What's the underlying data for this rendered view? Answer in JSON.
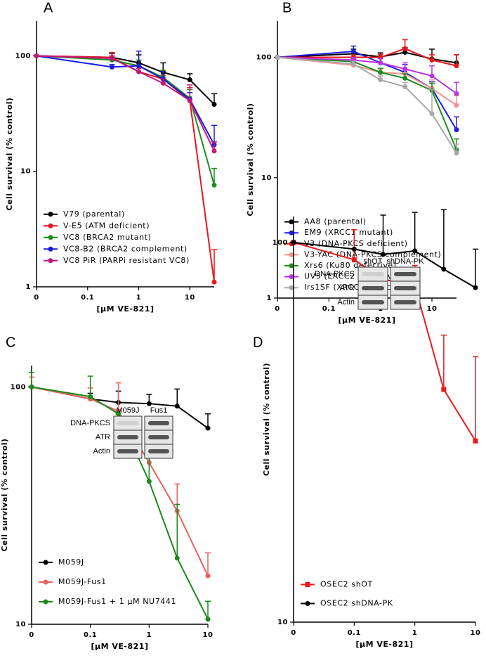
{
  "chart_data": [
    {
      "type": "line",
      "panel": "A",
      "ylabel": "Cell survival (% control)",
      "xlabel": "[µM VE-821]",
      "x": [
        0,
        0.3,
        1,
        3,
        10,
        30
      ],
      "xlim": [
        0,
        30
      ],
      "xticks": [
        0,
        0.1,
        1,
        10
      ],
      "xscale": "log",
      "ylim": [
        1,
        200
      ],
      "yticks": [
        1,
        10,
        100
      ],
      "yscale": "log",
      "legend": "lower left",
      "series": [
        {
          "name": "V79 (parental)",
          "color": "#000000",
          "marker": "circle",
          "values": [
            100,
            97,
            87,
            72,
            62,
            38
          ],
          "errors": [
            0,
            8,
            15,
            15,
            8,
            9
          ]
        },
        {
          "name": "V-E5 (ATM deficient)",
          "color": "#e8161b",
          "marker": "circle",
          "values": [
            100,
            97,
            73,
            63,
            41,
            1.1
          ],
          "errors": [
            0,
            10,
            8,
            5,
            12,
            1
          ]
        },
        {
          "name": "VC8 (BRCA2 mutant)",
          "color": "#1e8c1e",
          "marker": "circle",
          "values": [
            100,
            92,
            82,
            65,
            43,
            7.6
          ],
          "errors": [
            0,
            5,
            10,
            10,
            8,
            3
          ]
        },
        {
          "name": "VC8-B2 (BRCA2 complement)",
          "color": "#1a1adc",
          "marker": "circle",
          "values": [
            100,
            80,
            82,
            63,
            42,
            17
          ],
          "errors": [
            0,
            4,
            28,
            10,
            6,
            8
          ]
        },
        {
          "name": "VC8 PiR (PARPi resistant VC8)",
          "color": "#c2187a",
          "marker": "circle",
          "values": [
            100,
            95,
            73,
            58,
            41,
            15
          ],
          "errors": [
            0,
            5,
            5,
            5,
            15,
            3
          ]
        }
      ]
    },
    {
      "type": "line",
      "panel": "B",
      "ylabel": "Cell survival (% control)",
      "xlabel": "[µM VE-821]",
      "x": [
        0,
        0.3,
        1,
        3,
        10,
        30
      ],
      "xlim": [
        0,
        30
      ],
      "xticks": [
        0,
        0.1,
        1,
        10
      ],
      "xscale": "log",
      "ylim": [
        1,
        200
      ],
      "yticks": [
        1,
        10,
        100
      ],
      "yscale": "log",
      "legend": "lower left",
      "series": [
        {
          "name": "AA8 (parental)",
          "color": "#000000",
          "marker": "circle",
          "values": [
            100,
            107,
            101,
            110,
            97,
            90
          ],
          "errors": [
            0,
            10,
            8,
            10,
            20,
            15
          ]
        },
        {
          "name": "EM9 (XRCC1 mutant)",
          "color": "#1f1fe0",
          "marker": "circle",
          "values": [
            100,
            112,
            90,
            75,
            55,
            25
          ],
          "errors": [
            0,
            12,
            8,
            12,
            8,
            7
          ]
        },
        {
          "name": "V3 (DNA-PKCS deficient)",
          "color": "#e8161b",
          "marker": "circle",
          "values": [
            100,
            100,
            100,
            118,
            95,
            85
          ],
          "errors": [
            0,
            5,
            6,
            22,
            10,
            20
          ]
        },
        {
          "name": "V3-YAC (DNA-PKCS complement)",
          "color": "#f4918a",
          "marker": "circle",
          "values": [
            100,
            86,
            75,
            73,
            55,
            40
          ],
          "errors": [
            0,
            5,
            5,
            8,
            10,
            8
          ]
        },
        {
          "name": "Xrs6 (Ku80 defective)",
          "color": "#1e8c1e",
          "marker": "circle",
          "values": [
            100,
            92,
            75,
            67,
            53,
            17
          ],
          "errors": [
            0,
            5,
            6,
            6,
            8,
            4
          ]
        },
        {
          "name": "UV5 (ERCC2 defective)",
          "color": "#b833e6",
          "marker": "circle",
          "values": [
            100,
            95,
            90,
            80,
            70,
            50
          ],
          "errors": [
            0,
            5,
            8,
            10,
            15,
            12
          ]
        },
        {
          "name": "Irs1SF (XRCC3 defective)",
          "color": "#a8a8a8",
          "marker": "circle",
          "values": [
            100,
            88,
            65,
            57,
            34,
            16
          ],
          "errors": [
            0,
            5,
            5,
            5,
            20,
            3
          ]
        }
      ]
    },
    {
      "type": "line",
      "panel": "C",
      "ylabel": "Cell survival (% control)",
      "xlabel": "[µM VE-821]",
      "x": [
        0,
        0.1,
        0.3,
        1,
        3,
        10
      ],
      "xlim": [
        0,
        10
      ],
      "xticks": [
        0,
        0.1,
        1,
        10
      ],
      "xscale": "log",
      "ylim": [
        10,
        123
      ],
      "yticks": [
        10,
        100
      ],
      "yscale": "log",
      "legend": "lower left",
      "series": [
        {
          "name": "M059J",
          "color": "#000000",
          "marker": "circle",
          "values": [
            100,
            89,
            86,
            85,
            83,
            67
          ],
          "errors": [
            0,
            5,
            10,
            8,
            15,
            10
          ]
        },
        {
          "name": "M059J-Fus1",
          "color": "#e8605c",
          "marker": "circle",
          "values": [
            100,
            89,
            79,
            48,
            30,
            16
          ],
          "errors": [
            10,
            10,
            25,
            16,
            9,
            4
          ]
        },
        {
          "name": "M059J-Fus1 + 1 µM NU7441",
          "color": "#1a8a1a",
          "marker": "circle",
          "values": [
            100,
            91,
            77,
            40,
            19,
            10.5
          ],
          "errors": [
            15,
            20,
            0,
            13,
            13,
            2
          ]
        }
      ],
      "inset": {
        "columns": [
          "M059J",
          "Fus1"
        ],
        "rows": [
          "DNA-PKCS",
          "ATR",
          "Actin"
        ]
      }
    },
    {
      "type": "line",
      "panel": "D",
      "ylabel": "Cell survival (% control)",
      "xlabel": "[µM VE-821]",
      "x": [
        0,
        0.1,
        0.3,
        1,
        3,
        10
      ],
      "xlim": [
        0,
        10
      ],
      "xticks": [
        0,
        0.1,
        1,
        10
      ],
      "xscale": "log",
      "ylim": [
        10,
        117
      ],
      "yticks": [
        10,
        100
      ],
      "yscale": "log",
      "legend": "lower left",
      "series": [
        {
          "name": "OSEC2 shOT",
          "color": "#e81a1a",
          "marker": "square",
          "values": [
            100,
            90,
            80,
            77,
            41,
            30
          ],
          "errors": [
            0,
            18,
            0,
            10,
            16,
            20
          ]
        },
        {
          "name": "OSEC2 shDNA-PK",
          "color": "#000000",
          "marker": "circle",
          "values": [
            100,
            96,
            93,
            95,
            85,
            76
          ],
          "errors": [
            0,
            0,
            25,
            25,
            37,
            20
          ]
        }
      ],
      "inset": {
        "columns": [
          "shOT",
          "shDNA-PK"
        ],
        "rows": [
          "DNA-PKCS",
          "ATR",
          "Actin"
        ]
      }
    }
  ]
}
